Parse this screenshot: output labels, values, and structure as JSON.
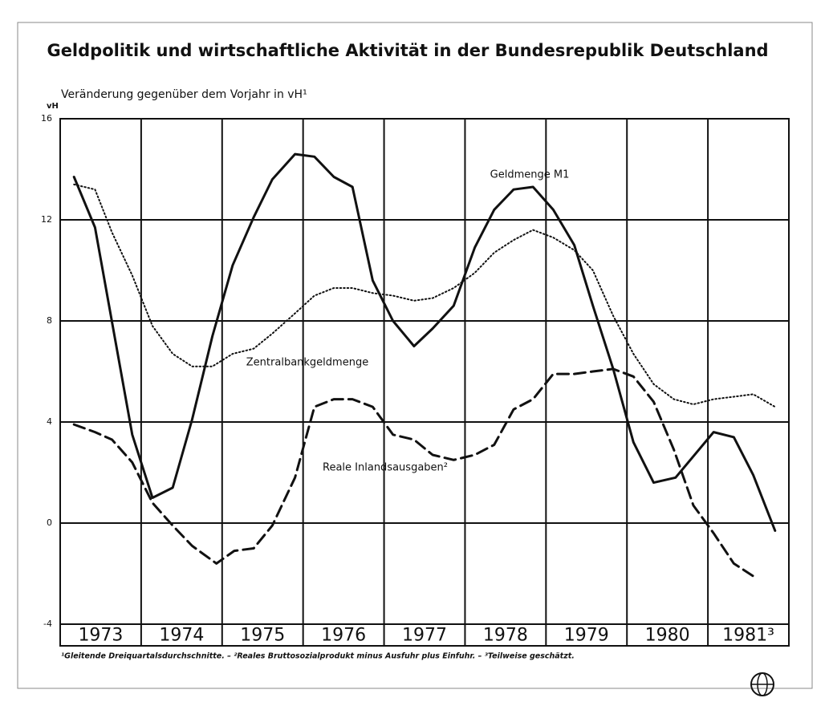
{
  "chart_data": {
    "type": "line",
    "title": "Geldpolitik und wirtschaftliche Aktivität in der Bundesrepublik Deutschland",
    "subtitle": "Veränderung gegenüber dem Vorjahr in vH¹",
    "y_axis_label": "vH",
    "footnote": "¹Gleitende Dreiquartalsdurchschnitte. – ²Reales Bruttosozialprodukt minus Ausfuhr plus Einfuhr. – ³Teilweise geschätzt.",
    "categories": [
      "1973",
      "1974",
      "1975",
      "1976",
      "1977",
      "1978",
      "1979",
      "1980",
      "1981³"
    ],
    "xlim": [
      1973,
      1982
    ],
    "xticks": [
      1974,
      1975,
      1976,
      1977,
      1978,
      1979,
      1980,
      1981
    ],
    "ylim": [
      -4,
      16
    ],
    "yticks": [
      -4,
      0,
      4,
      8,
      12,
      16
    ],
    "grid": true,
    "series": [
      {
        "name": "Geldmenge M1",
        "color": "#111111",
        "dash": "solid",
        "x": [
          1973.17,
          1973.43,
          1973.89,
          1974.14,
          1974.39,
          1974.63,
          1974.88,
          1975.13,
          1975.39,
          1975.62,
          1975.9,
          1976.14,
          1976.38,
          1976.61,
          1976.86,
          1977.11,
          1977.37,
          1977.6,
          1977.86,
          1978.12,
          1978.36,
          1978.6,
          1978.84,
          1979.09,
          1979.35,
          1979.58,
          1979.83,
          1980.08,
          1980.33,
          1980.6,
          1981.07,
          1981.32,
          1981.56,
          1981.83
        ],
        "values": [
          13.7,
          11.7,
          3.5,
          1.0,
          1.4,
          4.1,
          7.4,
          10.2,
          12.1,
          13.6,
          14.6,
          14.5,
          13.7,
          13.3,
          9.6,
          8.0,
          7.0,
          7.7,
          8.6,
          10.9,
          12.4,
          13.2,
          13.3,
          12.4,
          11.0,
          8.6,
          6.1,
          3.2,
          1.6,
          1.8,
          3.6,
          3.4,
          1.9,
          -0.3
        ]
      },
      {
        "name": "Zentralbankgeldmenge",
        "color": "#111111",
        "dash": "dotted",
        "x": [
          1973.17,
          1973.43,
          1973.64,
          1973.89,
          1974.14,
          1974.39,
          1974.63,
          1974.88,
          1975.13,
          1975.39,
          1975.62,
          1975.9,
          1976.14,
          1976.38,
          1976.61,
          1976.86,
          1977.11,
          1977.37,
          1977.6,
          1977.86,
          1978.12,
          1978.36,
          1978.6,
          1978.84,
          1979.09,
          1979.35,
          1979.58,
          1979.83,
          1980.08,
          1980.33,
          1980.58,
          1980.82,
          1981.07,
          1981.32,
          1981.56,
          1981.83
        ],
        "values": [
          13.4,
          13.2,
          11.5,
          9.8,
          7.8,
          6.7,
          6.2,
          6.2,
          6.7,
          6.9,
          7.5,
          8.3,
          9.0,
          9.3,
          9.3,
          9.1,
          9.0,
          8.8,
          8.9,
          9.3,
          9.9,
          10.7,
          11.2,
          11.6,
          11.3,
          10.8,
          10.0,
          8.2,
          6.7,
          5.5,
          4.9,
          4.7,
          4.9,
          5.0,
          5.1,
          4.6
        ]
      },
      {
        "name": "Reale Inlandsausgaben²",
        "color": "#111111",
        "dash": "dashed",
        "x": [
          1973.17,
          1973.43,
          1973.64,
          1973.89,
          1974.14,
          1974.39,
          1974.63,
          1974.93,
          1975.15,
          1975.39,
          1975.62,
          1975.9,
          1976.14,
          1976.38,
          1976.61,
          1976.86,
          1977.11,
          1977.37,
          1977.6,
          1977.86,
          1978.12,
          1978.36,
          1978.6,
          1978.84,
          1979.09,
          1979.35,
          1979.58,
          1979.83,
          1980.08,
          1980.33,
          1980.58,
          1980.82,
          1981.07,
          1981.32,
          1981.56
        ],
        "values": [
          3.9,
          3.6,
          3.3,
          2.4,
          0.8,
          -0.1,
          -0.9,
          -1.6,
          -1.1,
          -1.0,
          -0.1,
          1.8,
          4.6,
          4.9,
          4.9,
          4.6,
          3.5,
          3.3,
          2.7,
          2.5,
          2.7,
          3.1,
          4.5,
          4.9,
          5.9,
          5.9,
          6.0,
          6.1,
          5.8,
          4.8,
          2.9,
          0.7,
          -0.4,
          -1.6,
          -2.1
        ]
      }
    ]
  }
}
